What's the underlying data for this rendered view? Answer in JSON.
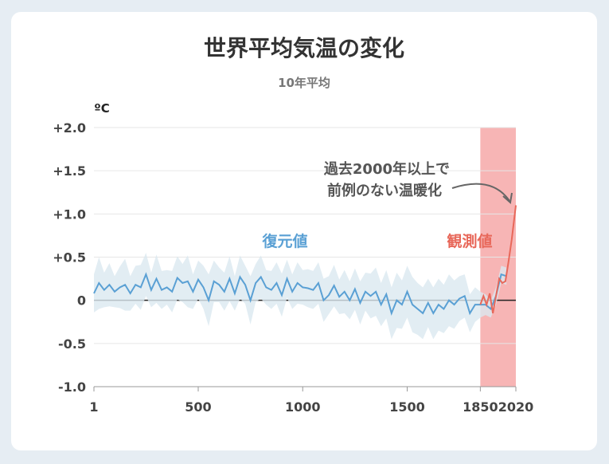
{
  "chart_data": {
    "type": "line",
    "title": "世界平均気温の変化",
    "subtitle": "10年平均",
    "ylabel": "ºC",
    "xlim": [
      1,
      2020
    ],
    "ylim": [
      -1.0,
      2.0
    ],
    "x_ticks": [
      1,
      500,
      1000,
      1500,
      1850,
      2020
    ],
    "x_tick_labels": [
      "1",
      "500",
      "1000",
      "1500",
      "1850",
      "2020"
    ],
    "y_ticks": [
      2.0,
      1.5,
      1.0,
      0.5,
      0,
      -0.5,
      -1.0
    ],
    "y_tick_labels": [
      "+2.0",
      "+1.5",
      "+1.0",
      "+0.5",
      "0",
      "-0.5",
      "-1.0"
    ],
    "grid": true,
    "observed_period_shading": [
      1850,
      2020
    ],
    "annotation": [
      "過去2000年以上で",
      "前例のない温暖化"
    ],
    "colors": {
      "reconstruction": "#5aa0d4",
      "band": "#dbe8f0",
      "observed": "#e8685a",
      "shading": "#f7b5b5"
    },
    "series": [
      {
        "name": "復元値",
        "x": [
          1,
          25,
          50,
          75,
          100,
          125,
          150,
          175,
          200,
          225,
          250,
          275,
          300,
          325,
          350,
          375,
          400,
          425,
          450,
          475,
          500,
          525,
          550,
          575,
          600,
          625,
          650,
          675,
          700,
          725,
          750,
          775,
          800,
          825,
          850,
          875,
          900,
          925,
          950,
          975,
          1000,
          1025,
          1050,
          1075,
          1100,
          1125,
          1150,
          1175,
          1200,
          1225,
          1250,
          1275,
          1300,
          1325,
          1350,
          1375,
          1400,
          1425,
          1450,
          1475,
          1500,
          1525,
          1550,
          1575,
          1600,
          1625,
          1650,
          1675,
          1700,
          1725,
          1750,
          1775,
          1800,
          1825,
          1850,
          1875,
          1900,
          1925,
          1950,
          1975
        ],
        "values": [
          0.08,
          0.2,
          0.12,
          0.18,
          0.1,
          0.15,
          0.18,
          0.08,
          0.18,
          0.15,
          0.3,
          0.12,
          0.25,
          0.12,
          0.15,
          0.1,
          0.26,
          0.2,
          0.22,
          0.1,
          0.24,
          0.15,
          0.0,
          0.22,
          0.18,
          0.1,
          0.25,
          0.08,
          0.27,
          0.18,
          0.0,
          0.2,
          0.27,
          0.15,
          0.12,
          0.2,
          0.06,
          0.25,
          0.1,
          0.2,
          0.15,
          0.14,
          0.12,
          0.2,
          0.0,
          0.06,
          0.17,
          0.04,
          0.1,
          0.0,
          0.13,
          -0.03,
          0.1,
          0.05,
          0.1,
          -0.05,
          0.07,
          -0.15,
          0.0,
          -0.05,
          0.1,
          -0.05,
          -0.1,
          -0.15,
          -0.03,
          -0.15,
          -0.05,
          -0.1,
          0.0,
          -0.05,
          0.02,
          0.05,
          -0.15,
          -0.05,
          -0.05,
          -0.05,
          -0.1,
          0.05,
          0.3,
          0.28
        ],
        "uncertainty": [
          0.22,
          0.3,
          0.2,
          0.25,
          0.18,
          0.24,
          0.3,
          0.2,
          0.22,
          0.26,
          0.25,
          0.2,
          0.28,
          0.22,
          0.2,
          0.24,
          0.25,
          0.22,
          0.3,
          0.2,
          0.22,
          0.25,
          0.3,
          0.24,
          0.2,
          0.22,
          0.26,
          0.2,
          0.25,
          0.22,
          0.28,
          0.22,
          0.25,
          0.2,
          0.22,
          0.24,
          0.25,
          0.22,
          0.2,
          0.24,
          0.2,
          0.22,
          0.22,
          0.24,
          0.25,
          0.22,
          0.24,
          0.2,
          0.25,
          0.22,
          0.24,
          0.25,
          0.22,
          0.26,
          0.28,
          0.25,
          0.28,
          0.3,
          0.32,
          0.28,
          0.3,
          0.32,
          0.3,
          0.3,
          0.28,
          0.3,
          0.3,
          0.28,
          0.3,
          0.28,
          0.26,
          0.25,
          0.22,
          0.2,
          0.15,
          0.12,
          0.1,
          0.1,
          0.1,
          0.1
        ]
      },
      {
        "name": "観測値",
        "x": [
          1850,
          1865,
          1880,
          1895,
          1910,
          1925,
          1940,
          1955,
          1970,
          1985,
          2000,
          2020
        ],
        "values": [
          -0.05,
          0.05,
          -0.05,
          0.08,
          -0.15,
          0.05,
          0.25,
          0.2,
          0.22,
          0.45,
          0.7,
          1.1
        ]
      }
    ]
  }
}
